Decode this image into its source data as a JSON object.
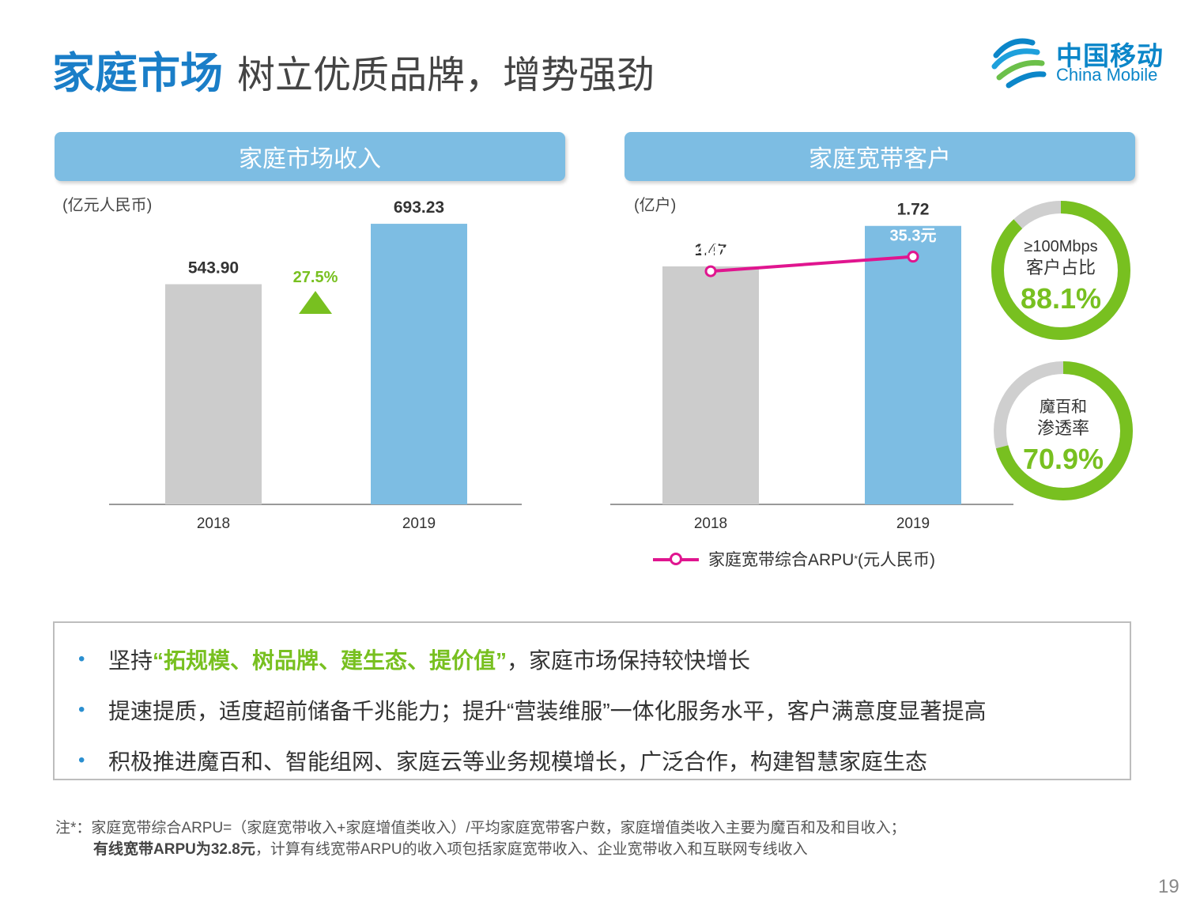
{
  "title": {
    "accent": "家庭市场",
    "rest": "树立优质品牌，增势强劲"
  },
  "logo": {
    "cn": "中国移动",
    "en": "China Mobile"
  },
  "left_panel": {
    "header": "家庭市场收入",
    "unit": "(亿元人民币)"
  },
  "right_panel": {
    "header": "家庭宽带客户",
    "unit": "(亿户)"
  },
  "colors": {
    "brand_blue": "#1a7ec8",
    "bar_gray": "#cccccc",
    "bar_blue": "#7dbde3",
    "green": "#78c020",
    "magenta": "#e0158f"
  },
  "chart_data": [
    {
      "type": "bar",
      "title": "家庭市场收入",
      "ylabel": "(亿元人民币)",
      "categories": [
        "2018",
        "2019"
      ],
      "values": [
        543.9,
        693.23
      ],
      "value_labels": [
        "543.90",
        "693.23"
      ],
      "growth_label": "27.5%",
      "ylim": [
        0,
        1000
      ]
    },
    {
      "type": "bar",
      "title": "家庭宽带客户",
      "ylabel": "(亿户)",
      "categories": [
        "2018",
        "2019"
      ],
      "values": [
        1.47,
        1.72
      ],
      "value_labels": [
        "1.47",
        "1.72"
      ],
      "ylim": [
        0,
        2.5
      ],
      "line_series": {
        "name": "家庭宽带综合ARPU",
        "name_suffix": "(元人民币)",
        "values": [
          34.4,
          35.3
        ],
        "value_labels": [
          "34.4元",
          "35.3元"
        ],
        "ylim": [
          20,
          45
        ]
      }
    }
  ],
  "donuts": [
    {
      "lines": [
        "≥100Mbps",
        "客户占比"
      ],
      "value": 88.1,
      "label": "88.1%"
    },
    {
      "lines": [
        "魔百和",
        "渗透率"
      ],
      "value": 70.9,
      "label": "70.9%"
    }
  ],
  "bullets": [
    {
      "before": "坚持",
      "highlight": "“拓规模、树品牌、建生态、提价值”",
      "after": "，家庭市场保持较快增长"
    },
    {
      "before": "提速提质，适度超前储备千兆能力；提升“营装维服”一体化服务水平，客户满意度显著提高",
      "highlight": "",
      "after": ""
    },
    {
      "before": "积极推进魔百和、智能组网、家庭云等业务规模增长，广泛合作，构建智慧家庭生态",
      "highlight": "",
      "after": ""
    }
  ],
  "note": {
    "line1": "注*：家庭宽带综合ARPU=（家庭宽带收入+家庭增值类收入）/平均家庭宽带客户数，家庭增值类收入主要为魔百和及和目收入；",
    "line2_bold": "有线宽带ARPU为32.8元",
    "line2_rest": "，计算有线宽带ARPU的收入项包括家庭宽带收入、企业宽带收入和互联网专线收入"
  },
  "page_number": "19"
}
